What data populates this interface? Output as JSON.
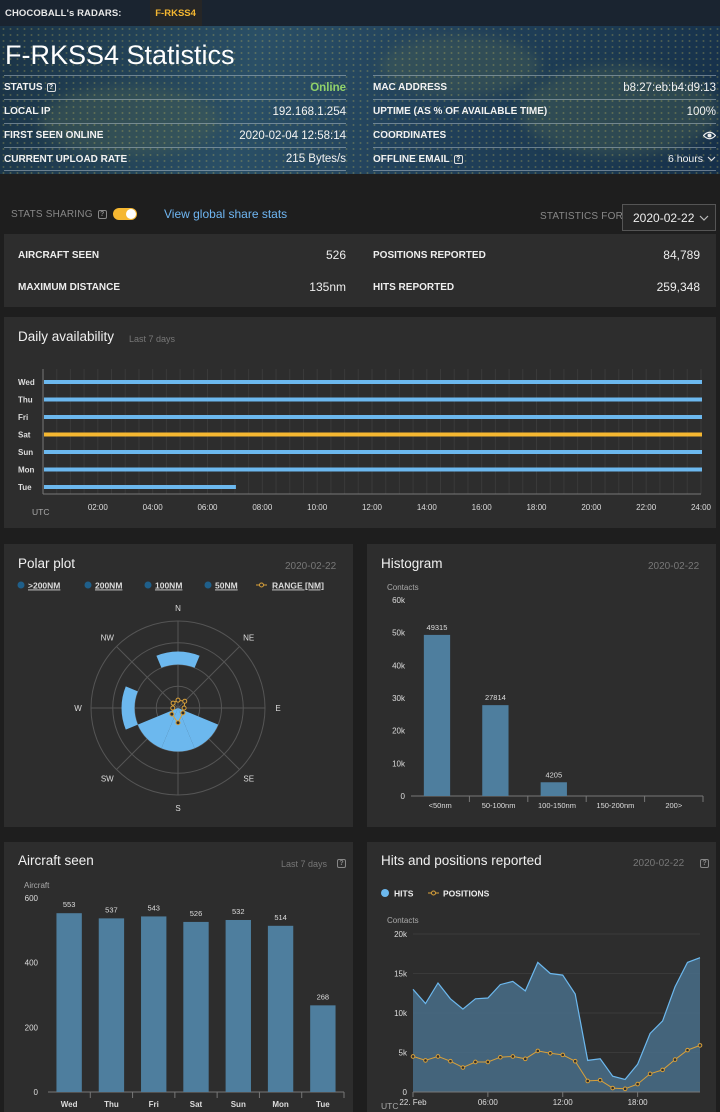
{
  "topbar": {
    "brand": "CHOCOBALL's RADARS:",
    "active_tab": "F-RKSS4"
  },
  "page": {
    "title": "F-RKSS4 Statistics"
  },
  "info_left": [
    {
      "label": "STATUS",
      "value": "Online",
      "help": true
    },
    {
      "label": "LOCAL IP",
      "value": "192.168.1.254"
    },
    {
      "label": "FIRST SEEN ONLINE",
      "value": "2020-02-04 12:58:14"
    },
    {
      "label": "CURRENT UPLOAD RATE",
      "value": "215 Bytes/s"
    }
  ],
  "info_right": [
    {
      "label": "MAC ADDRESS",
      "value": "b8:27:eb:b4:d9:13"
    },
    {
      "label": "UPTIME (AS % OF AVAILABLE TIME)",
      "value": "100%"
    },
    {
      "label": "COORDINATES",
      "value": "",
      "icon": "eye-icon"
    },
    {
      "label": "OFFLINE EMAIL",
      "value": "6 hours",
      "help": true,
      "icon": "chevron-down-icon"
    }
  ],
  "sharing": {
    "label": "STATS SHARING",
    "enabled": true,
    "link": "View global share stats",
    "stats_for_label": "STATISTICS FOR",
    "date": "2020-02-22"
  },
  "summary": {
    "aircraft_seen_label": "AIRCRAFT SEEN",
    "aircraft_seen": "526",
    "max_distance_label": "MAXIMUM DISTANCE",
    "max_distance": "135nm",
    "positions_label": "POSITIONS REPORTED",
    "positions": "84,789",
    "hits_label": "HITS REPORTED",
    "hits": "259,348"
  },
  "availability": {
    "title": "Daily availability",
    "subtitle": "Last 7 days",
    "utc_label": "UTC",
    "colors": {
      "normal": "#6cb8ee",
      "today": "#f5b731"
    }
  },
  "polar": {
    "title": "Polar plot",
    "date": "2020-02-22",
    "legend": [
      {
        "label": ">200NM",
        "color": "#1f5f8a"
      },
      {
        "label": "200NM",
        "color": "#1f5f8a"
      },
      {
        "label": "100NM",
        "color": "#1f5f8a"
      },
      {
        "label": "50NM",
        "color": "#1f5f8a"
      },
      {
        "label": "RANGE [NM]",
        "color": "#d9a13a"
      }
    ],
    "directions": [
      "N",
      "NE",
      "E",
      "SE",
      "S",
      "SW",
      "W",
      "NW"
    ]
  },
  "histogram": {
    "title": "Histogram",
    "date": "2020-02-22"
  },
  "aircraft_seen": {
    "title": "Aircraft seen",
    "subtitle": "Last 7 days"
  },
  "hits_positions": {
    "title": "Hits and positions reported",
    "date": "2020-02-22",
    "legend_hits": "HITS",
    "legend_positions": "POSITIONS"
  },
  "chart_data": [
    {
      "id": "availability",
      "type": "bar",
      "orientation": "horizontal",
      "categories": [
        "Wed",
        "Thu",
        "Fri",
        "Sat",
        "Sun",
        "Mon",
        "Tue"
      ],
      "values_hours": [
        24,
        24,
        24,
        24,
        24,
        24,
        7
      ],
      "highlight": "Sat",
      "xticks": [
        "02:00",
        "04:00",
        "06:00",
        "08:00",
        "10:00",
        "12:00",
        "14:00",
        "16:00",
        "18:00",
        "20:00",
        "22:00",
        "24:00"
      ],
      "xlim": [
        0,
        24
      ]
    },
    {
      "id": "histogram",
      "type": "bar",
      "ylabel": "Contacts",
      "categories": [
        "<50nm",
        "50-100nm",
        "100-150nm",
        "150-200nm",
        "200>"
      ],
      "values": [
        49315,
        27814,
        4205,
        0,
        0
      ],
      "data_labels": [
        "49315",
        "27814",
        "4205",
        "",
        ""
      ],
      "ylim": [
        0,
        60000
      ],
      "yticks": [
        "0",
        "10k",
        "20k",
        "30k",
        "40k",
        "50k",
        "60k"
      ]
    },
    {
      "id": "aircraft_seen",
      "type": "bar",
      "ylabel": "Aircraft",
      "categories": [
        "Wed",
        "Thu",
        "Fri",
        "Sat",
        "Sun",
        "Mon",
        "Tue"
      ],
      "values": [
        553,
        537,
        543,
        526,
        532,
        514,
        268
      ],
      "ylim": [
        0,
        600
      ],
      "yticks": [
        "0",
        "200",
        "400",
        "600"
      ]
    },
    {
      "id": "hits_positions",
      "type": "area",
      "ylabel": "Contacts",
      "ylim": [
        0,
        20000
      ],
      "yticks": [
        "0",
        "5k",
        "10k",
        "15k",
        "20k"
      ],
      "xticks": [
        "22. Feb",
        "06:00",
        "12:00",
        "18:00"
      ],
      "x_label": "UTC",
      "series": [
        {
          "name": "HITS",
          "values": [
            13000,
            11200,
            13800,
            11800,
            10500,
            11800,
            11900,
            13600,
            14000,
            12800,
            16400,
            15000,
            14800,
            12400,
            4000,
            4200,
            2000,
            1600,
            3500,
            7400,
            9000,
            13300,
            16400,
            17000
          ]
        },
        {
          "name": "POSITIONS",
          "values": [
            4500,
            4000,
            4500,
            3900,
            3100,
            3800,
            3800,
            4400,
            4500,
            4200,
            5200,
            4900,
            4700,
            3900,
            1400,
            1500,
            500,
            400,
            1000,
            2300,
            2800,
            4100,
            5300,
            5900
          ]
        }
      ]
    },
    {
      "id": "polar",
      "type": "polar",
      "sectors_50nm": [
        "S",
        "SW",
        "SE"
      ],
      "sectors_100nm": [
        "N",
        "W"
      ],
      "range_nm": [
        18,
        22,
        14,
        16,
        34,
        20,
        12,
        16
      ]
    }
  ]
}
